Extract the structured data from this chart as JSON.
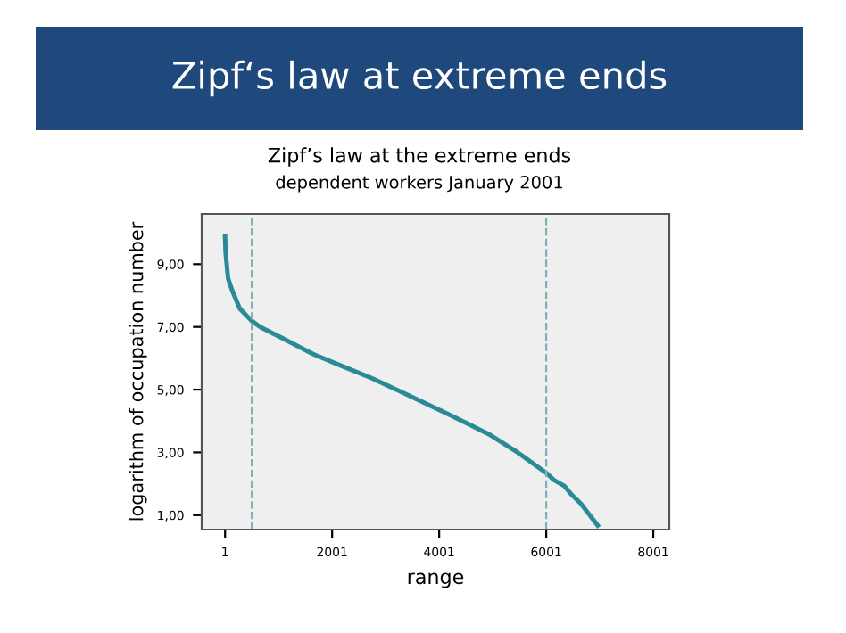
{
  "chart_data": {
    "type": "line",
    "title": "Zipf‘s law at extreme ends",
    "subtitle": "Zipf’s law at the extreme ends",
    "annotations": [
      "dependent workers January 2001"
    ],
    "xlabel": "range",
    "ylabel": "logarithm of occupation number",
    "x": [
      1,
      10,
      56,
      132,
      274,
      493,
      657,
      1094,
      1640,
      2187,
      2734,
      3280,
      3826,
      4373,
      4920,
      5466,
      6013,
      6144,
      6340,
      6482,
      6646,
      6777,
      6963
    ],
    "series": [
      {
        "color": "#2b8a98",
        "values": [
          9.9,
          9.4,
          8.55,
          8.17,
          7.59,
          7.2,
          7.0,
          6.62,
          6.14,
          5.75,
          5.37,
          4.94,
          4.5,
          4.05,
          3.59,
          3.0,
          2.33,
          2.12,
          1.93,
          1.64,
          1.37,
          1.08,
          0.67
        ]
      }
    ],
    "xlim": [
      -436,
      8300
    ],
    "ylim": [
      0.54,
      10.6
    ],
    "xticks": [
      1,
      2001,
      4001,
      6001,
      8001
    ],
    "yticks": [
      {
        "value": 1,
        "label": "1,00"
      },
      {
        "value": 3,
        "label": "3,00"
      },
      {
        "value": 5,
        "label": "5,00"
      },
      {
        "value": 7,
        "label": "7,00"
      },
      {
        "value": 9,
        "label": "9,00"
      }
    ],
    "ref_lines": [
      {
        "axis": "x",
        "value": 500,
        "color": "#7fb0b5",
        "line_style": "dashed"
      },
      {
        "axis": "x",
        "value": 6001,
        "color": "#7fb0b5",
        "line_style": "dashed"
      }
    ],
    "grid": false,
    "marker": "none",
    "line_style": "solid"
  }
}
